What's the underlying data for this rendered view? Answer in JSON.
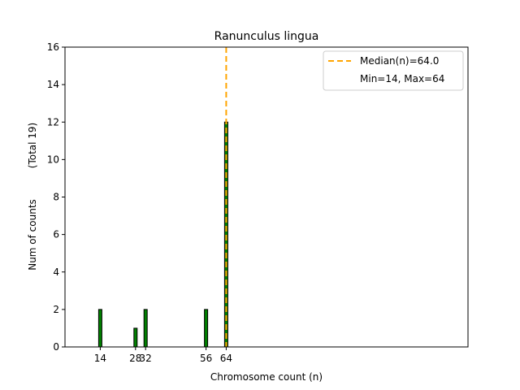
{
  "chart_data": {
    "type": "bar",
    "title": "Ranunculus lingua",
    "xlabel": "Chromosome count (n)",
    "ylabel": "Num of counts",
    "ylabel_total": "(Total 19)",
    "xlim": [
      0,
      160
    ],
    "ylim": [
      0,
      16
    ],
    "yticks": [
      0,
      2,
      4,
      6,
      8,
      10,
      12,
      14,
      16
    ],
    "xticks": [
      14,
      28,
      32,
      56,
      64
    ],
    "xtick_labels": [
      "14",
      "28",
      "32",
      "56",
      "64"
    ],
    "bar_color": "#008000",
    "bar_edge_color": "#000000",
    "bars": [
      {
        "x": 14,
        "value": 2
      },
      {
        "x": 28,
        "value": 1
      },
      {
        "x": 32,
        "value": 2
      },
      {
        "x": 56,
        "value": 2
      },
      {
        "x": 64,
        "value": 12
      }
    ],
    "median_line": {
      "x": 64.0,
      "color": "#ffa500",
      "style": "dashed"
    },
    "legend": {
      "position": "top-right",
      "entries": [
        {
          "label": "Median(n)=64.0",
          "kind": "dashed-line",
          "color": "#ffa500"
        },
        {
          "label": "Min=14, Max=64",
          "kind": "none"
        }
      ]
    },
    "grid": false
  }
}
